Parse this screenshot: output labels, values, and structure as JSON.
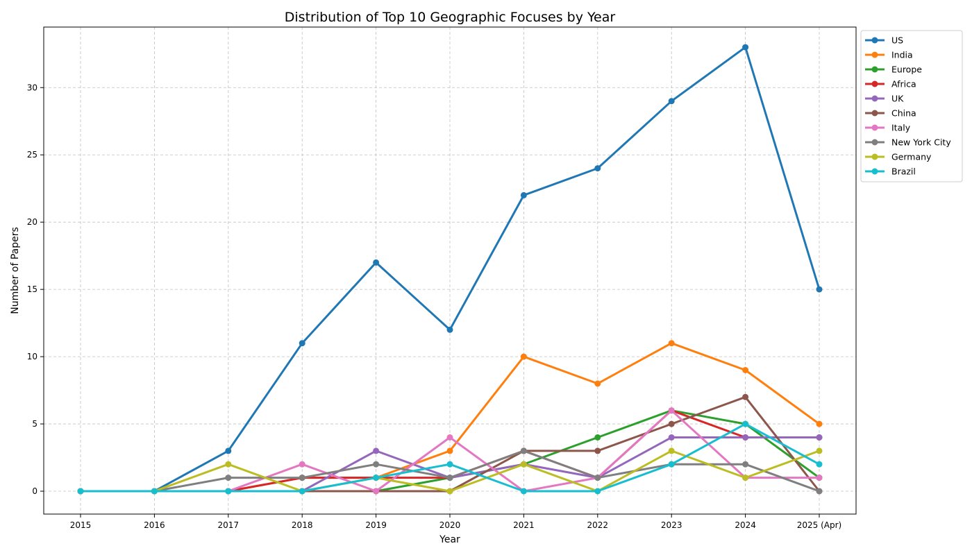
{
  "chart_data": {
    "type": "line",
    "title": "Distribution of Top 10 Geographic Focuses by Year",
    "xlabel": "Year",
    "ylabel": "Number of Papers",
    "categories": [
      "2015",
      "2016",
      "2017",
      "2018",
      "2019",
      "2020",
      "2021",
      "2022",
      "2023",
      "2024",
      "2025 (Apr)"
    ],
    "yticks": [
      0,
      5,
      10,
      15,
      20,
      25,
      30
    ],
    "ylim": [
      -1.7,
      34.5
    ],
    "grid": true,
    "legend_position": "outside-top-right",
    "series": [
      {
        "name": "US",
        "color": "#1f77b4",
        "values": [
          0,
          0,
          3,
          11,
          17,
          12,
          22,
          24,
          29,
          33,
          15
        ]
      },
      {
        "name": "India",
        "color": "#ff7f0e",
        "values": [
          0,
          0,
          0,
          1,
          1,
          3,
          10,
          8,
          11,
          9,
          5
        ]
      },
      {
        "name": "Europe",
        "color": "#2ca02c",
        "values": [
          0,
          0,
          0,
          0,
          0,
          1,
          2,
          4,
          6,
          5,
          1
        ]
      },
      {
        "name": "Africa",
        "color": "#d62728",
        "values": [
          0,
          0,
          0,
          1,
          1,
          1,
          3,
          1,
          6,
          4,
          4
        ]
      },
      {
        "name": "UK",
        "color": "#9467bd",
        "values": [
          0,
          0,
          0,
          0,
          3,
          1,
          2,
          1,
          4,
          4,
          4
        ]
      },
      {
        "name": "China",
        "color": "#8c564b",
        "values": [
          0,
          0,
          0,
          0,
          0,
          0,
          3,
          3,
          5,
          7,
          0
        ]
      },
      {
        "name": "Italy",
        "color": "#e377c2",
        "values": [
          0,
          0,
          0,
          2,
          0,
          4,
          0,
          1,
          6,
          1,
          1
        ]
      },
      {
        "name": "New York City",
        "color": "#7f7f7f",
        "values": [
          0,
          0,
          1,
          1,
          2,
          1,
          3,
          1,
          2,
          2,
          0
        ]
      },
      {
        "name": "Germany",
        "color": "#bcbd22",
        "values": [
          0,
          0,
          2,
          0,
          1,
          0,
          2,
          0,
          3,
          1,
          3
        ]
      },
      {
        "name": "Brazil",
        "color": "#17becf",
        "values": [
          0,
          0,
          0,
          0,
          1,
          2,
          0,
          0,
          2,
          5,
          2
        ]
      }
    ]
  }
}
